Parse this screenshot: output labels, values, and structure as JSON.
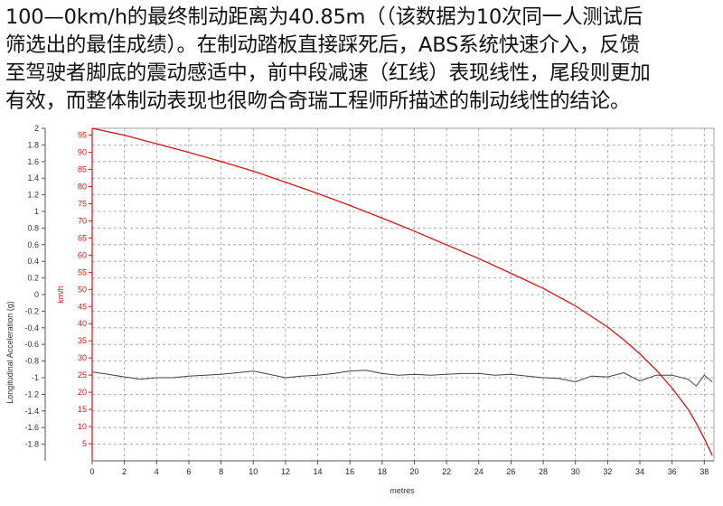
{
  "caption": {
    "lines": [
      "100—0km/h的最终制动距离为40.85m（（该数据为10次同一人测试后",
      "筛选出的最佳成绩）。在制动踏板直接踩死后，ABS系统快速介入，反馈",
      "至驾驶者脚底的震动感适中，前中段减速（红线）表现线性，尾段则更加",
      "有效，而整体制动表现也很吻合奇瑞工程师所描述的制动线性的结论。"
    ]
  },
  "colors": {
    "speed": "#e01010",
    "acceleration": "#404040",
    "grid": "#9a9a9a",
    "axis_speed": "#e01010"
  },
  "chart_data": {
    "type": "line",
    "xlabel": "metres",
    "ylabel_left": "Longitudinal Acceleration (g)",
    "ylabel_right": "km/h",
    "xlim": [
      0,
      38.6
    ],
    "ylim_left": [
      -2,
      2
    ],
    "ylim_speed": [
      0,
      97
    ],
    "grid": true,
    "x_ticks": [
      "0",
      "2",
      "4",
      "6",
      "8",
      "10",
      "12",
      "14",
      "16",
      "18",
      "20",
      "22",
      "24",
      "26",
      "28",
      "30",
      "32",
      "34",
      "36",
      "38"
    ],
    "left_ticks": [
      "2",
      "1.8",
      "1.6",
      "1.4",
      "1.2",
      "1",
      "0.8",
      "0.6",
      "0.4",
      "0.2",
      "0",
      "-0.2",
      "-0.4",
      "-0.6",
      "-0.8",
      "-1",
      "-1.2",
      "-1.4",
      "-1.6",
      "-1.8"
    ],
    "speed_ticks": [
      "95",
      "90",
      "85",
      "80",
      "75",
      "70",
      "65",
      "60",
      "55",
      "50",
      "45",
      "40",
      "35",
      "30",
      "25",
      "20",
      "15",
      "10",
      "5"
    ],
    "series": [
      {
        "axis": "speed",
        "x": [
          0,
          2,
          4,
          6,
          8,
          10,
          12,
          14,
          16,
          18,
          20,
          22,
          24,
          26,
          28,
          30,
          32,
          33,
          34,
          35,
          36,
          37,
          37.5,
          38,
          38.3,
          38.5
        ],
        "y": [
          97,
          95,
          92.5,
          90,
          87.3,
          84.5,
          81.3,
          78,
          74.5,
          70.8,
          67,
          63,
          59,
          54.7,
          50.3,
          45.2,
          39,
          35.3,
          31.2,
          26.6,
          21.2,
          15,
          11,
          6.5,
          3.5,
          1.5
        ]
      },
      {
        "axis": "left",
        "x": [
          0,
          1,
          2,
          3,
          4,
          5,
          6,
          7,
          8,
          9,
          10,
          11,
          12,
          13,
          14,
          15,
          16,
          17,
          18,
          19,
          20,
          21,
          22,
          23,
          24,
          25,
          26,
          27,
          28,
          29,
          30,
          31,
          32,
          33,
          34,
          35,
          36,
          37,
          37.5,
          38,
          38.5
        ],
        "y": [
          -0.93,
          -0.96,
          -0.99,
          -1.02,
          -1.0,
          -1.0,
          -0.98,
          -0.97,
          -0.96,
          -0.94,
          -0.92,
          -0.96,
          -1.0,
          -0.98,
          -0.97,
          -0.95,
          -0.92,
          -0.91,
          -0.95,
          -0.97,
          -0.96,
          -0.97,
          -0.96,
          -0.95,
          -0.95,
          -0.97,
          -0.96,
          -0.98,
          -1.0,
          -1.01,
          -1.05,
          -0.98,
          -0.99,
          -0.94,
          -1.04,
          -0.97,
          -0.97,
          -1.02,
          -1.1,
          -0.97,
          -1.05
        ]
      }
    ]
  }
}
